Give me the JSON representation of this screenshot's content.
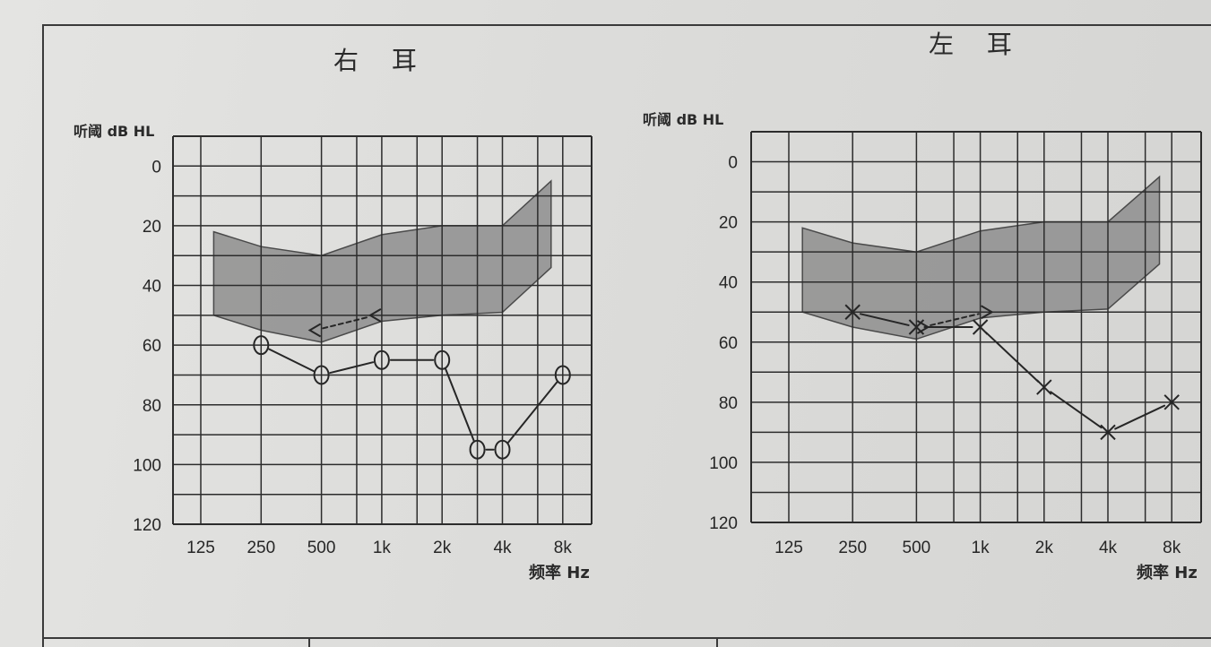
{
  "page": {
    "colors": {
      "ink": "#262626",
      "grid": "#2c2c2c",
      "band": "#8e8e8e",
      "band_edge": "#4a4a4a"
    }
  },
  "chart_data": [
    {
      "type": "line",
      "title": "右 耳",
      "ylabel": "听阈 dB HL",
      "xlabel": "频率 Hz",
      "xscale": "log2",
      "x_tick_labels": [
        "125",
        "250",
        "500",
        "1k",
        "2k",
        "4k",
        "8k"
      ],
      "x_tick_values": [
        125,
        250,
        500,
        1000,
        2000,
        4000,
        8000
      ],
      "y_ticks": [
        0,
        20,
        40,
        60,
        80,
        100,
        120
      ],
      "ylim": [
        -10,
        120
      ],
      "y_inverted": true,
      "grid": true,
      "shaded_region": [
        [
          145,
          22
        ],
        [
          250,
          27
        ],
        [
          500,
          30
        ],
        [
          1000,
          23
        ],
        [
          2000,
          20
        ],
        [
          4000,
          20
        ],
        [
          7000,
          5
        ],
        [
          7000,
          34
        ],
        [
          4000,
          49
        ],
        [
          2000,
          50
        ],
        [
          1000,
          52
        ],
        [
          500,
          59
        ],
        [
          250,
          55
        ],
        [
          145,
          50
        ]
      ],
      "series": [
        {
          "marker": "circle",
          "line": "solid",
          "x": [
            250,
            500,
            1000,
            2000,
            3000,
            4000,
            8000
          ],
          "y": [
            60,
            70,
            65,
            65,
            95,
            95,
            70
          ]
        },
        {
          "marker": "<",
          "line": "dashed",
          "x": [
            500,
            1000
          ],
          "y": [
            55,
            50
          ]
        }
      ]
    },
    {
      "type": "line",
      "title": "左 耳",
      "ylabel": "听阈 dB HL",
      "xlabel": "频率 Hz",
      "xscale": "log2",
      "x_tick_labels": [
        "125",
        "250",
        "500",
        "1k",
        "2k",
        "4k",
        "8k"
      ],
      "x_tick_values": [
        125,
        250,
        500,
        1000,
        2000,
        4000,
        8000
      ],
      "y_ticks": [
        0,
        20,
        40,
        60,
        80,
        100,
        120
      ],
      "ylim": [
        -10,
        120
      ],
      "y_inverted": true,
      "grid": true,
      "shaded_region": [
        [
          145,
          22
        ],
        [
          250,
          27
        ],
        [
          500,
          30
        ],
        [
          1000,
          23
        ],
        [
          2000,
          20
        ],
        [
          4000,
          20
        ],
        [
          7000,
          5
        ],
        [
          7000,
          34
        ],
        [
          4000,
          49
        ],
        [
          2000,
          50
        ],
        [
          1000,
          52
        ],
        [
          500,
          59
        ],
        [
          250,
          55
        ],
        [
          145,
          50
        ]
      ],
      "series": [
        {
          "marker": "x",
          "line": "solid",
          "x": [
            250,
            500,
            1000,
            2000,
            4000,
            8000
          ],
          "y": [
            50,
            55,
            55,
            75,
            90,
            80
          ]
        },
        {
          "marker": ">",
          "line": "dashed",
          "x": [
            500,
            1000
          ],
          "y": [
            55,
            50
          ]
        }
      ]
    }
  ]
}
